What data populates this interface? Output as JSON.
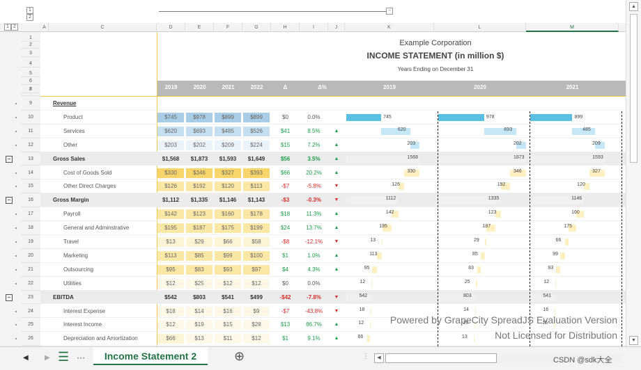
{
  "level_buttons": {
    "rows": [
      "1",
      "2"
    ],
    "cols": [
      "1",
      "2"
    ]
  },
  "col_headers": [
    "A",
    "C",
    "D",
    "E",
    "F",
    "G",
    "H",
    "I",
    "J",
    "K",
    "L",
    "M"
  ],
  "title": {
    "company": "Example Corporation",
    "statement": "INCOME STATEMENT (in million $)",
    "period": "Years Ending on December 31"
  },
  "header_row": {
    "years": [
      "2019",
      "2020",
      "2021",
      "2022"
    ],
    "delta": "Δ",
    "delta_pct": "Δ%",
    "chart_years": [
      "2019",
      "2020",
      "2021"
    ]
  },
  "top_row_numbers": [
    "1",
    "2",
    "3",
    "4",
    "5",
    "6",
    "7",
    "8"
  ],
  "rows": [
    {
      "n": "9",
      "label": "Revenue",
      "type": "section",
      "vals": [
        "",
        "",
        "",
        ""
      ],
      "d": "",
      "p": "",
      "arrow": ""
    },
    {
      "n": "10",
      "label": "Product",
      "type": "item",
      "vals": [
        "$745",
        "$978",
        "$899",
        "$899"
      ],
      "d": "$0",
      "p": "0.0%",
      "arrow": "",
      "dc": "#555"
    },
    {
      "n": "11",
      "label": "Services",
      "type": "item",
      "vals": [
        "$620",
        "$693",
        "$485",
        "$526"
      ],
      "d": "$41",
      "p": "8.5%",
      "arrow": "▲",
      "dc": "#1a9e4a"
    },
    {
      "n": "12",
      "label": "Other",
      "type": "item",
      "vals": [
        "$203",
        "$202",
        "$209",
        "$224"
      ],
      "d": "$15",
      "p": "7.2%",
      "arrow": "▲",
      "dc": "#1a9e4a"
    },
    {
      "n": "13",
      "label": "Gross Sales",
      "type": "total",
      "vals": [
        "$1,568",
        "$1,873",
        "$1,593",
        "$1,649"
      ],
      "d": "$56",
      "p": "3.5%",
      "arrow": "▲",
      "dc": "#1a9e4a"
    },
    {
      "n": "14",
      "label": "Cost of Goods Sold",
      "type": "item",
      "vals": [
        "$330",
        "$346",
        "$327",
        "$393"
      ],
      "d": "$66",
      "p": "20.2%",
      "arrow": "▲",
      "dc": "#1a9e4a"
    },
    {
      "n": "15",
      "label": "Other Direct Charges",
      "type": "item",
      "vals": [
        "$126",
        "$192",
        "$120",
        "$113"
      ],
      "d": "-$7",
      "p": "-5.8%",
      "arrow": "▼",
      "dc": "#d62c2c"
    },
    {
      "n": "16",
      "label": "Gross Margin",
      "type": "total",
      "vals": [
        "$1,112",
        "$1,335",
        "$1,146",
        "$1,143"
      ],
      "d": "-$3",
      "p": "-0.3%",
      "arrow": "▼",
      "dc": "#d62c2c"
    },
    {
      "n": "17",
      "label": "Payroll",
      "type": "item",
      "vals": [
        "$142",
        "$123",
        "$160",
        "$178"
      ],
      "d": "$18",
      "p": "11.3%",
      "arrow": "▲",
      "dc": "#1a9e4a"
    },
    {
      "n": "18",
      "label": "General and Adminstrative",
      "type": "item",
      "vals": [
        "$195",
        "$187",
        "$175",
        "$199"
      ],
      "d": "$24",
      "p": "13.7%",
      "arrow": "▲",
      "dc": "#1a9e4a"
    },
    {
      "n": "19",
      "label": "Travel",
      "type": "item",
      "vals": [
        "$13",
        "$29",
        "$66",
        "$58"
      ],
      "d": "-$8",
      "p": "-12.1%",
      "arrow": "▼",
      "dc": "#d62c2c"
    },
    {
      "n": "20",
      "label": "Marketing",
      "type": "item",
      "vals": [
        "$113",
        "$85",
        "$99",
        "$100"
      ],
      "d": "$1",
      "p": "1.0%",
      "arrow": "▲",
      "dc": "#1a9e4a"
    },
    {
      "n": "21",
      "label": "Outsourcing",
      "type": "item",
      "vals": [
        "$95",
        "$83",
        "$93",
        "$97"
      ],
      "d": "$4",
      "p": "4.3%",
      "arrow": "▲",
      "dc": "#1a9e4a"
    },
    {
      "n": "22",
      "label": "Utilities",
      "type": "item",
      "vals": [
        "$12",
        "$25",
        "$12",
        "$12"
      ],
      "d": "$0",
      "p": "0.0%",
      "arrow": "",
      "dc": "#555"
    },
    {
      "n": "23",
      "label": "EBITDA",
      "type": "total",
      "vals": [
        "$542",
        "$803",
        "$541",
        "$499"
      ],
      "d": "-$42",
      "p": "-7.8%",
      "arrow": "▼",
      "dc": "#d62c2c"
    },
    {
      "n": "24",
      "label": "Interest Expense",
      "type": "item",
      "vals": [
        "$18",
        "$14",
        "$16",
        "$9"
      ],
      "d": "-$7",
      "p": "-43.8%",
      "arrow": "▼",
      "dc": "#d62c2c"
    },
    {
      "n": "25",
      "label": "Interest Income",
      "type": "item",
      "vals": [
        "$12",
        "$19",
        "$15",
        "$28"
      ],
      "d": "$13",
      "p": "86.7%",
      "arrow": "▲",
      "dc": "#1a9e4a"
    },
    {
      "n": "26",
      "label": "Depreciation and Amortization",
      "type": "item",
      "vals": [
        "$66",
        "$13",
        "$11",
        "$12"
      ],
      "d": "$1",
      "p": "9.1%",
      "arrow": "▲",
      "dc": "#1a9e4a"
    }
  ],
  "chart": {
    "values_2019": [
      "745",
      "620",
      "203",
      "1568",
      "330",
      "126",
      "1112",
      "142",
      "195",
      "13",
      "113",
      "95",
      "12",
      "542",
      "18",
      "12",
      "66"
    ],
    "values_2020": [
      "978",
      "693",
      "202",
      "1873",
      "346",
      "192",
      "1335",
      "123",
      "187",
      "29",
      "85",
      "83",
      "25",
      "803",
      "14",
      "19",
      "13"
    ],
    "values_2021": [
      "899",
      "485",
      "209",
      "1593",
      "327",
      "120",
      "1146",
      "160",
      "175",
      "66",
      "99",
      "93",
      "12",
      "541",
      "16",
      "15",
      ""
    ]
  },
  "watermark": {
    "line1": "Powered by GrapeCity SpreadJS Evaluation Version",
    "line2": "Not Licensed for Distribution"
  },
  "tabbar": {
    "sheet_name": "Income Statement 2",
    "add": "⊕",
    "more": "···",
    "credit": "CSDN @sdk大全"
  },
  "colors": {
    "blue": "#5bbfe3",
    "lightblue": "#c6e7f5",
    "yellow": "#fff0c2",
    "header_grey": "#b9b9b9",
    "green": "#1a9e4a",
    "red": "#d62c2c"
  }
}
